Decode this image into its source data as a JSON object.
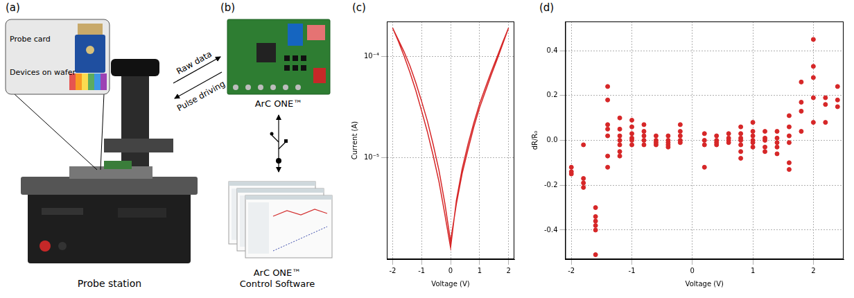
{
  "panels": {
    "a": {
      "letter": "(a)",
      "labels": [
        "Probe card",
        "Devices on wafer"
      ],
      "caption": "Probe station"
    },
    "arrows": [
      "Raw data",
      "Pulse driving"
    ],
    "b": {
      "letter": "(b)",
      "board_caption": "ArC ONE™",
      "software_caption": "ArC ONE™ Control Software"
    },
    "c": {
      "letter": "(c)"
    },
    "d": {
      "letter": "(d)"
    }
  },
  "chart_data": [
    {
      "type": "line",
      "x_label": "Voltage (V)",
      "y_label": "Current (A)",
      "log": "y",
      "grid": true,
      "color": "#d62728",
      "line_style": "solid",
      "xlim": [
        -2.2,
        2.2
      ],
      "xticks": [
        -2,
        -1,
        0,
        1,
        2
      ],
      "ylim": [
        1e-06,
        0.00022
      ],
      "yticks": [
        {
          "value": 1e-05,
          "label": "10⁻⁵"
        },
        {
          "value": 0.0001,
          "label": "10⁻⁴"
        }
      ],
      "x": [
        -2,
        -1.8,
        -1.6,
        -1.4,
        -1.2,
        -1.0,
        -0.8,
        -0.6,
        -0.4,
        -0.2,
        0,
        0.2,
        0.4,
        0.6,
        0.8,
        1.0,
        1.2,
        1.4,
        1.6,
        1.8,
        2.0,
        1.8,
        1.6,
        1.4,
        1.2,
        1.0,
        0.8,
        0.6,
        0.4,
        0.2,
        0,
        -0.2,
        -0.4,
        -0.6,
        -0.8,
        -1.0,
        -1.2,
        -1.4,
        -1.6,
        -1.8,
        -2.0
      ],
      "values": [
        0.00019,
        0.000145,
        0.00011,
        8e-05,
        5.5e-05,
        3.6e-05,
        2.3e-05,
        1.35e-05,
        7.5e-06,
        3.6e-06,
        1.5e-06,
        3.5e-06,
        7e-06,
        1.2e-05,
        2e-05,
        3.1e-05,
        4.5e-05,
        6.5e-05,
        9.2e-05,
        0.000132,
        0.00019,
        0.000138,
        9.8e-05,
        7e-05,
        4.9e-05,
        3.4e-05,
        2.2e-05,
        1.35e-05,
        7.8e-06,
        3.8e-06,
        1.3e-06,
        2.8e-06,
        5.8e-06,
        1.05e-05,
        1.8e-05,
        2.9e-05,
        4.6e-05,
        6.9e-05,
        0.0001,
        0.00014,
        0.00019
      ]
    },
    {
      "type": "scatter",
      "x_label": "Voltage (V)",
      "y_label": "dR/R₀",
      "grid": true,
      "color": "#d62728",
      "marker": "circle",
      "xlim": [
        -2.1,
        2.5
      ],
      "xticks": [
        -2,
        -1,
        0,
        1,
        2
      ],
      "ylim": [
        -0.53,
        0.53
      ],
      "yticks": [
        -0.4,
        -0.2,
        {
          "value": 0,
          "label": "0.0"
        },
        0.2,
        0.4
      ],
      "x": [
        -2,
        -2,
        -2,
        -1.8,
        -1.8,
        -1.8,
        -1.8,
        -1.6,
        -1.6,
        -1.6,
        -1.6,
        -1.6,
        -1.6,
        -1.4,
        -1.4,
        -1.4,
        -1.4,
        -1.4,
        -1.4,
        -1.4,
        -1.2,
        -1.2,
        -1.2,
        -1.2,
        -1.2,
        -1.2,
        -1.2,
        -1.0,
        -1.0,
        -1.0,
        -1.0,
        -1.0,
        -1.0,
        -0.8,
        -0.8,
        -0.8,
        -0.8,
        -0.8,
        -0.6,
        -0.6,
        -0.6,
        -0.6,
        -0.4,
        -0.4,
        -0.4,
        -0.4,
        -0.4,
        -0.2,
        -0.2,
        -0.2,
        -0.2,
        -0.2,
        0.2,
        0.2,
        0.2,
        0.2,
        0.4,
        0.4,
        0.4,
        0.4,
        0.6,
        0.6,
        0.6,
        0.6,
        0.8,
        0.8,
        0.8,
        0.8,
        0.8,
        0.8,
        0.8,
        1.0,
        1.0,
        1.0,
        1.0,
        1.0,
        1.0,
        1.2,
        1.2,
        1.2,
        1.2,
        1.2,
        1.4,
        1.4,
        1.4,
        1.4,
        1.4,
        1.6,
        1.6,
        1.6,
        1.6,
        1.6,
        1.6,
        1.8,
        1.8,
        1.8,
        1.8,
        2.0,
        2.0,
        2.0,
        2.0,
        2.0,
        2.2,
        2.2,
        2.2,
        2.4,
        2.4,
        2.4
      ],
      "values": [
        -0.12,
        -0.14,
        -0.15,
        -0.02,
        -0.17,
        -0.19,
        -0.21,
        -0.3,
        -0.34,
        -0.36,
        -0.38,
        -0.4,
        -0.51,
        0.24,
        0.18,
        0.07,
        0.05,
        0.02,
        -0.07,
        -0.12,
        0.1,
        0.05,
        0.02,
        0.0,
        -0.02,
        -0.05,
        -0.07,
        0.09,
        0.06,
        0.03,
        0.01,
        0.0,
        -0.02,
        0.07,
        0.04,
        0.02,
        0.0,
        -0.02,
        0.02,
        0.0,
        -0.01,
        -0.02,
        0.02,
        0.0,
        -0.01,
        -0.02,
        -0.03,
        0.07,
        0.04,
        0.02,
        0.0,
        -0.01,
        0.03,
        0.0,
        -0.02,
        -0.12,
        0.02,
        0.0,
        -0.01,
        -0.02,
        0.03,
        0.01,
        0.0,
        -0.01,
        0.06,
        0.03,
        0.01,
        0.0,
        -0.02,
        -0.05,
        -0.08,
        0.08,
        0.04,
        0.02,
        0.0,
        -0.01,
        -0.03,
        0.04,
        0.01,
        0.0,
        -0.03,
        -0.05,
        0.04,
        0.01,
        -0.01,
        -0.03,
        -0.06,
        0.11,
        0.06,
        0.02,
        -0.01,
        -0.1,
        -0.13,
        0.26,
        0.17,
        0.13,
        0.04,
        0.45,
        0.33,
        0.28,
        0.19,
        0.08,
        0.19,
        0.16,
        0.08,
        0.24,
        0.18,
        0.15
      ]
    }
  ]
}
